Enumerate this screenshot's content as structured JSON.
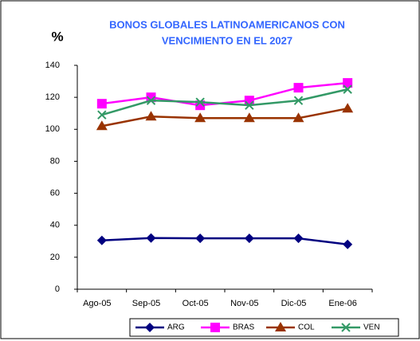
{
  "chart_data": {
    "type": "line",
    "title": [
      "BONOS GLOBALES LATINOAMERICANOS CON",
      "VENCIMIENTO EN EL 2027"
    ],
    "y_label": "%",
    "categories": [
      "Ago-05",
      "Sep-05",
      "Oct-05",
      "Nov-05",
      "Dic-05",
      "Ene-06"
    ],
    "series": [
      {
        "name": "ARG",
        "color": "#000080",
        "marker": "diamond",
        "values": [
          30.5,
          32,
          31.8,
          31.8,
          31.8,
          28
        ]
      },
      {
        "name": "BRAS",
        "color": "#ff00ff",
        "marker": "square",
        "values": [
          116,
          120,
          115,
          118,
          126,
          129
        ]
      },
      {
        "name": "COL",
        "color": "#993300",
        "marker": "triangle",
        "values": [
          102,
          108,
          107,
          107,
          107,
          113
        ]
      },
      {
        "name": "VEN",
        "color": "#339966",
        "marker": "x",
        "values": [
          109,
          118,
          117,
          115,
          118,
          125
        ]
      }
    ],
    "ylim": [
      0,
      140
    ],
    "yticks": [
      0,
      20,
      40,
      60,
      80,
      100,
      120,
      140
    ],
    "legend": "bottom"
  }
}
